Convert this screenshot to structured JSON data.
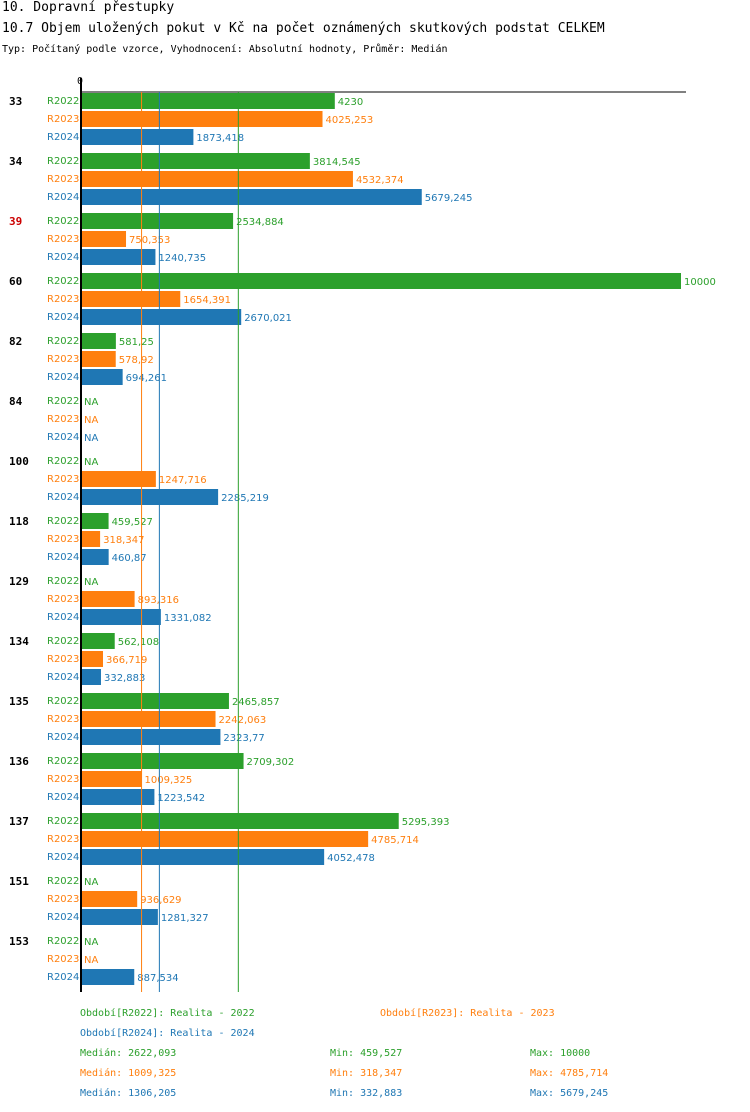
{
  "header": {
    "title": "10. Dopravní přestupky",
    "subtitle": "10.7 Objem uložených pokut v Kč na počet oznámených skutkových podstat CELKEM",
    "description": "Typ: Počítaný podle vzorce, Vyhodnocení: Absolutní hodnoty, Průměr: Medián"
  },
  "chart_data": {
    "type": "bar",
    "orientation": "horizontal",
    "axis_zero_label": "0",
    "xlim": [
      0,
      10000
    ],
    "series_colors": {
      "R2022": "#2ca02c",
      "R2023": "#ff7f0e",
      "R2024": "#1f77b4"
    },
    "highlight_color": "#cc0000",
    "series": [
      "R2022",
      "R2023",
      "R2024"
    ],
    "groups": [
      {
        "label": "33",
        "highlight": false,
        "values": [
          4230,
          4025.253,
          1873.418
        ],
        "labels": [
          "4230",
          "4025,253",
          "1873,418"
        ]
      },
      {
        "label": "34",
        "highlight": false,
        "values": [
          3814.545,
          4532.374,
          5679.245
        ],
        "labels": [
          "3814,545",
          "4532,374",
          "5679,245"
        ]
      },
      {
        "label": "39",
        "highlight": true,
        "values": [
          2534.884,
          750.353,
          1240.735
        ],
        "labels": [
          "2534,884",
          "750,353",
          "1240,735"
        ]
      },
      {
        "label": "60",
        "highlight": false,
        "values": [
          10000,
          1654.391,
          2670.021
        ],
        "labels": [
          "10000",
          "1654,391",
          "2670,021"
        ]
      },
      {
        "label": "82",
        "highlight": false,
        "values": [
          581.25,
          578.92,
          694.261
        ],
        "labels": [
          "581,25",
          "578,92",
          "694,261"
        ]
      },
      {
        "label": "84",
        "highlight": false,
        "values": [
          null,
          null,
          null
        ],
        "labels": [
          "NA",
          "NA",
          "NA"
        ]
      },
      {
        "label": "100",
        "highlight": false,
        "values": [
          null,
          1247.716,
          2285.219
        ],
        "labels": [
          "NA",
          "1247,716",
          "2285,219"
        ]
      },
      {
        "label": "118",
        "highlight": false,
        "values": [
          459.527,
          318.347,
          460.87
        ],
        "labels": [
          "459,527",
          "318,347",
          "460,87"
        ]
      },
      {
        "label": "129",
        "highlight": false,
        "values": [
          null,
          893.316,
          1331.082
        ],
        "labels": [
          "NA",
          "893,316",
          "1331,082"
        ]
      },
      {
        "label": "134",
        "highlight": false,
        "values": [
          562.108,
          366.719,
          332.883
        ],
        "labels": [
          "562,108",
          "366,719",
          "332,883"
        ]
      },
      {
        "label": "135",
        "highlight": false,
        "values": [
          2465.857,
          2242.063,
          2323.77
        ],
        "labels": [
          "2465,857",
          "2242,063",
          "2323,77"
        ]
      },
      {
        "label": "136",
        "highlight": false,
        "values": [
          2709.302,
          1009.325,
          1223.542
        ],
        "labels": [
          "2709,302",
          "1009,325",
          "1223,542"
        ]
      },
      {
        "label": "137",
        "highlight": false,
        "values": [
          5295.393,
          4785.714,
          4052.478
        ],
        "labels": [
          "5295,393",
          "4785,714",
          "4052,478"
        ]
      },
      {
        "label": "151",
        "highlight": false,
        "values": [
          null,
          936.629,
          1281.327
        ],
        "labels": [
          "NA",
          "936,629",
          "1281,327"
        ]
      },
      {
        "label": "153",
        "highlight": false,
        "values": [
          null,
          null,
          887.534
        ],
        "labels": [
          "NA",
          "NA",
          "887,534"
        ]
      }
    ],
    "medians": [
      {
        "series": "R2022",
        "value": 2622.093
      },
      {
        "series": "R2023",
        "value": 1009.325
      },
      {
        "series": "R2024",
        "value": 1306.205
      }
    ]
  },
  "legend": {
    "r2022": "Období[R2022]: Realita - 2022",
    "r2023": "Období[R2023]: Realita - 2023",
    "r2024": "Období[R2024]: Realita - 2024"
  },
  "stats": [
    {
      "median": "Medián: 2622,093",
      "min": "Min: 459,527",
      "max": "Max: 10000"
    },
    {
      "median": "Medián: 1009,325",
      "min": "Min: 318,347",
      "max": "Max: 4785,714"
    },
    {
      "median": "Medián: 1306,205",
      "min": "Min: 332,883",
      "max": "Max: 5679,245"
    }
  ]
}
